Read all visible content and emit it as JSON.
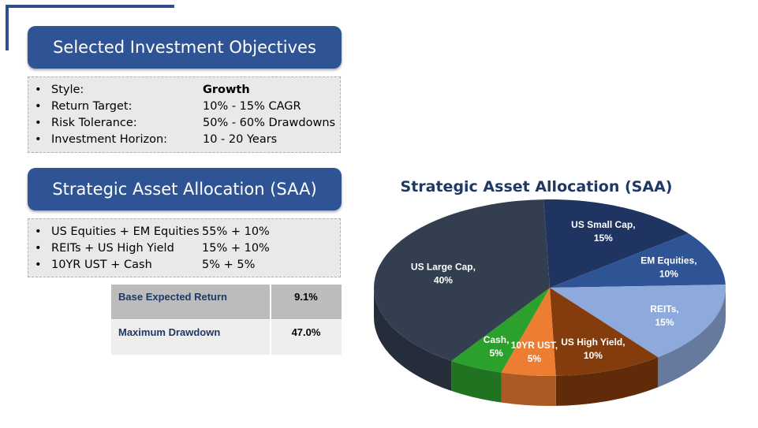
{
  "objectives": {
    "title": "Selected Investment Objectives",
    "items": [
      {
        "label": "Style:",
        "value": "Growth"
      },
      {
        "label": "Return Target:",
        "value": "10% - 15% CAGR"
      },
      {
        "label": "Risk Tolerance:",
        "value": "50% - 60% Drawdowns"
      },
      {
        "label": "Investment Horizon:",
        "value": "10 - 20 Years"
      }
    ]
  },
  "saa": {
    "title": "Strategic Asset Allocation (SAA)",
    "items": [
      {
        "label": "US Equities + EM Equities",
        "value": "55% + 10%"
      },
      {
        "label": "REITs + US High Yield",
        "value": "15% + 10%"
      },
      {
        "label": "10YR UST + Cash",
        "value": "5% + 5%"
      }
    ]
  },
  "metrics": [
    {
      "label": "Base Expected Return",
      "value": "9.1%"
    },
    {
      "label": "Maximum Drawdown",
      "value": "47.0%"
    }
  ],
  "chart_data": {
    "type": "pie",
    "title": "Strategic Asset Allocation (SAA)",
    "slices": [
      {
        "name": "US Small Cap",
        "value": 15,
        "label": "15%",
        "color": "#1f3461"
      },
      {
        "name": "EM Equities",
        "value": 10,
        "label": "10%",
        "color": "#2e5496"
      },
      {
        "name": "REITs",
        "value": 15,
        "label": "15%",
        "color": "#8ea9db"
      },
      {
        "name": "US High Yield",
        "value": 10,
        "label": "10%",
        "color": "#843c0c"
      },
      {
        "name": "10YR UST",
        "value": 5,
        "label": "5%",
        "color": "#ed7d31"
      },
      {
        "name": "Cash",
        "value": 5,
        "label": "5%",
        "color": "#2ca02c"
      },
      {
        "name": "US Large Cap",
        "value": 40,
        "label": "40%",
        "color": "#333f50"
      }
    ]
  }
}
